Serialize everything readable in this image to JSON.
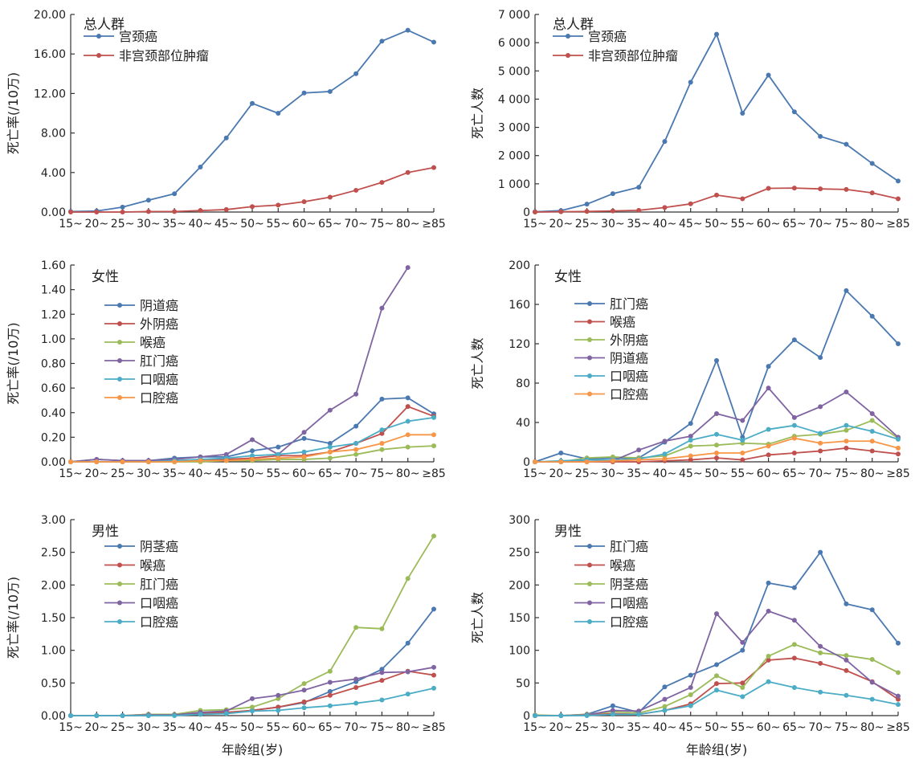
{
  "x_common_label": "年龄组(岁)",
  "chart_data": [
    {
      "type": "line",
      "title": "总人群",
      "ylabel": "死亡率(/10万)",
      "xlabel": "",
      "categories": [
        "15~",
        "20~",
        "25~",
        "30~",
        "35~",
        "40~",
        "45~",
        "50~",
        "55~",
        "60~",
        "65~",
        "70~",
        "75~",
        "80~",
        "≥85"
      ],
      "ylim": [
        0,
        20
      ],
      "yticks": [
        "0.00",
        "4.00",
        "8.00",
        "12.00",
        "16.00",
        "20.00"
      ],
      "yticks_values": [
        0,
        4,
        8,
        12,
        16,
        20
      ],
      "legend_position": "top-left",
      "grid": false,
      "series": [
        {
          "name": "宫颈癌",
          "color": "#4a78b0",
          "values": [
            0.05,
            0.1,
            0.5,
            1.2,
            1.85,
            4.55,
            7.5,
            11.0,
            10.0,
            12.05,
            12.2,
            14.0,
            17.3,
            18.4,
            17.2
          ]
        },
        {
          "name": "非宫颈部位肿瘤",
          "color": "#c0504d",
          "values": [
            0.0,
            0.0,
            0.0,
            0.05,
            0.05,
            0.15,
            0.25,
            0.55,
            0.7,
            1.05,
            1.5,
            2.2,
            3.0,
            4.0,
            4.5
          ]
        }
      ]
    },
    {
      "type": "line",
      "title": "总人群",
      "ylabel": "死亡人数",
      "xlabel": "",
      "categories": [
        "15~",
        "20~",
        "25~",
        "30~",
        "35~",
        "40~",
        "45~",
        "50~",
        "55~",
        "60~",
        "65~",
        "70~",
        "75~",
        "80~",
        "≥85"
      ],
      "ylim": [
        0,
        7000
      ],
      "yticks": [
        "0",
        "1 000",
        "2 000",
        "3 000",
        "4 000",
        "5 000",
        "6 000",
        "7 000"
      ],
      "yticks_values": [
        0,
        1000,
        2000,
        3000,
        4000,
        5000,
        6000,
        7000
      ],
      "legend_position": "top-left",
      "grid": false,
      "series": [
        {
          "name": "宫颈癌",
          "color": "#4a78b0",
          "values": [
            10,
            50,
            280,
            650,
            880,
            2500,
            4600,
            6300,
            3500,
            4850,
            3550,
            2680,
            2400,
            1720,
            1100
          ]
        },
        {
          "name": "非宫颈部位肿瘤",
          "color": "#c0504d",
          "values": [
            0,
            10,
            20,
            40,
            60,
            160,
            290,
            600,
            470,
            840,
            850,
            820,
            800,
            680,
            470
          ]
        }
      ]
    },
    {
      "type": "line",
      "title": "女性",
      "ylabel": "死亡率(/10万)",
      "xlabel": "",
      "categories": [
        "15~",
        "20~",
        "25~",
        "30~",
        "35~",
        "40~",
        "45~",
        "50~",
        "55~",
        "60~",
        "65~",
        "70~",
        "75~",
        "80~",
        "≥85"
      ],
      "ylim": [
        0,
        1.6
      ],
      "yticks": [
        "0.00",
        "0.20",
        "0.40",
        "0.60",
        "0.80",
        "1.00",
        "1.20",
        "1.40",
        "1.60"
      ],
      "yticks_values": [
        0,
        0.2,
        0.4,
        0.6,
        0.8,
        1.0,
        1.2,
        1.4,
        1.6
      ],
      "legend_position": "top-left",
      "grid": false,
      "series": [
        {
          "name": "阴道癌",
          "color": "#4a78b0",
          "values": [
            0.0,
            0.02,
            0.01,
            0.01,
            0.03,
            0.04,
            0.04,
            0.09,
            0.12,
            0.19,
            0.15,
            0.29,
            0.51,
            0.52,
            0.39
          ]
        },
        {
          "name": "外阴癌",
          "color": "#c0504d",
          "values": [
            0.0,
            0.0,
            0.0,
            0.0,
            0.0,
            0.01,
            0.02,
            0.03,
            0.05,
            0.05,
            0.08,
            0.15,
            0.23,
            0.45,
            0.37
          ]
        },
        {
          "name": "喉癌",
          "color": "#9bbb59",
          "values": [
            0.0,
            0.0,
            0.0,
            0.0,
            0.0,
            0.0,
            0.01,
            0.01,
            0.02,
            0.02,
            0.03,
            0.06,
            0.1,
            0.12,
            0.13
          ]
        },
        {
          "name": "肛门癌",
          "color": "#8064a2",
          "values": [
            0.0,
            0.02,
            0.01,
            0.01,
            0.02,
            0.04,
            0.06,
            0.18,
            0.06,
            0.24,
            0.42,
            0.55,
            1.25,
            1.58,
            null
          ]
        },
        {
          "name": "口咽癌",
          "color": "#4bacc6",
          "values": [
            0.0,
            0.0,
            0.0,
            0.0,
            0.01,
            0.02,
            0.03,
            0.05,
            0.06,
            0.08,
            0.12,
            0.15,
            0.26,
            0.33,
            0.36
          ]
        },
        {
          "name": "口腔癌",
          "color": "#f79646",
          "values": [
            0.0,
            0.0,
            0.0,
            0.0,
            0.0,
            0.01,
            0.01,
            0.02,
            0.03,
            0.04,
            0.08,
            0.1,
            0.15,
            0.22,
            0.22
          ]
        }
      ]
    },
    {
      "type": "line",
      "title": "女性",
      "ylabel": "死亡人数",
      "xlabel": "",
      "categories": [
        "15~",
        "20~",
        "25~",
        "30~",
        "35~",
        "40~",
        "45~",
        "50~",
        "55~",
        "60~",
        "65~",
        "70~",
        "75~",
        "80~",
        "≥85"
      ],
      "ylim": [
        0,
        200
      ],
      "yticks": [
        "0",
        "40",
        "80",
        "120",
        "160",
        "200"
      ],
      "yticks_values": [
        0,
        40,
        80,
        120,
        160,
        200
      ],
      "legend_position": "top-left",
      "grid": false,
      "series": [
        {
          "name": "肛门癌",
          "color": "#4a78b0",
          "values": [
            0,
            9,
            3,
            4,
            4,
            20,
            39,
            103,
            25,
            97,
            124,
            106,
            174,
            148,
            120
          ]
        },
        {
          "name": "喉癌",
          "color": "#c0504d",
          "values": [
            0,
            0,
            0,
            0,
            0,
            1,
            2,
            4,
            2,
            7,
            9,
            11,
            14,
            11,
            8
          ]
        },
        {
          "name": "外阴癌",
          "color": "#9bbb59",
          "values": [
            0,
            0,
            4,
            5,
            4,
            6,
            16,
            17,
            19,
            18,
            26,
            28,
            32,
            42,
            24
          ]
        },
        {
          "name": "阴道癌",
          "color": "#8064a2",
          "values": [
            0,
            0,
            2,
            1,
            12,
            21,
            26,
            49,
            42,
            75,
            45,
            56,
            71,
            49,
            25
          ]
        },
        {
          "name": "口咽癌",
          "color": "#4bacc6",
          "values": [
            0,
            1,
            2,
            2,
            3,
            8,
            22,
            28,
            22,
            33,
            37,
            29,
            37,
            31,
            23
          ]
        },
        {
          "name": "口腔癌",
          "color": "#f79646",
          "values": [
            0,
            0,
            0,
            1,
            2,
            3,
            6,
            9,
            9,
            16,
            24,
            19,
            21,
            21,
            14
          ]
        }
      ]
    },
    {
      "type": "line",
      "title": "男性",
      "ylabel": "死亡率(/10万)",
      "xlabel": "年龄组(岁)",
      "categories": [
        "15~",
        "20~",
        "25~",
        "30~",
        "35~",
        "40~",
        "45~",
        "50~",
        "55~",
        "60~",
        "65~",
        "70~",
        "75~",
        "80~",
        "≥85"
      ],
      "ylim": [
        0,
        3
      ],
      "yticks": [
        "0.00",
        "0.50",
        "1.00",
        "1.50",
        "2.00",
        "2.50",
        "3.00"
      ],
      "yticks_values": [
        0,
        0.5,
        1.0,
        1.5,
        2.0,
        2.5,
        3.0
      ],
      "legend_position": "top-left",
      "grid": false,
      "series": [
        {
          "name": "阴茎癌",
          "color": "#4a78b0",
          "values": [
            0.0,
            0.0,
            0.0,
            0.0,
            0.01,
            0.02,
            0.04,
            0.08,
            0.13,
            0.2,
            0.37,
            0.52,
            0.71,
            1.11,
            1.63
          ]
        },
        {
          "name": "喉癌",
          "color": "#c0504d",
          "values": [
            0.0,
            0.0,
            0.0,
            0.02,
            0.01,
            0.03,
            0.05,
            0.08,
            0.13,
            0.21,
            0.31,
            0.43,
            0.54,
            0.68,
            0.62
          ]
        },
        {
          "name": "肛门癌",
          "color": "#9bbb59",
          "values": [
            0.0,
            0.0,
            0.0,
            0.02,
            0.02,
            0.08,
            0.09,
            0.13,
            0.26,
            0.49,
            0.68,
            1.35,
            1.33,
            2.1,
            2.75
          ]
        },
        {
          "name": "口咽癌",
          "color": "#8064a2",
          "values": [
            0.0,
            0.0,
            0.0,
            0.01,
            0.01,
            0.05,
            0.07,
            0.26,
            0.31,
            0.39,
            0.51,
            0.56,
            0.66,
            0.67,
            0.74
          ]
        },
        {
          "name": "口腔癌",
          "color": "#4bacc6",
          "values": [
            0.0,
            0.0,
            0.0,
            0.0,
            0.0,
            0.02,
            0.03,
            0.07,
            0.08,
            0.12,
            0.15,
            0.19,
            0.24,
            0.33,
            0.42
          ]
        }
      ]
    },
    {
      "type": "line",
      "title": "男性",
      "ylabel": "死亡人数",
      "xlabel": "年龄组(岁)",
      "categories": [
        "15~",
        "20~",
        "25~",
        "30~",
        "35~",
        "40~",
        "45~",
        "50~",
        "55~",
        "60~",
        "65~",
        "70~",
        "75~",
        "80~",
        "≥85"
      ],
      "ylim": [
        0,
        300
      ],
      "yticks": [
        "0",
        "50",
        "100",
        "150",
        "200",
        "250",
        "300"
      ],
      "yticks_values": [
        0,
        50,
        100,
        150,
        200,
        250,
        300
      ],
      "legend_position": "top-left",
      "grid": false,
      "series": [
        {
          "name": "肛门癌",
          "color": "#4a78b0",
          "values": [
            0,
            0,
            2,
            15,
            5,
            44,
            62,
            78,
            100,
            203,
            196,
            250,
            171,
            162,
            111
          ]
        },
        {
          "name": "喉癌",
          "color": "#c0504d",
          "values": [
            0,
            0,
            1,
            3,
            2,
            8,
            18,
            49,
            50,
            85,
            88,
            80,
            69,
            52,
            25
          ]
        },
        {
          "name": "阴茎癌",
          "color": "#9bbb59",
          "values": [
            1,
            0,
            2,
            6,
            4,
            14,
            32,
            61,
            43,
            91,
            109,
            96,
            92,
            86,
            66
          ]
        },
        {
          "name": "口咽癌",
          "color": "#8064a2",
          "values": [
            0,
            0,
            1,
            8,
            7,
            25,
            43,
            156,
            112,
            160,
            146,
            106,
            85,
            51,
            30
          ]
        },
        {
          "name": "口腔癌",
          "color": "#4bacc6",
          "values": [
            0,
            0,
            0,
            2,
            2,
            8,
            15,
            39,
            29,
            52,
            43,
            36,
            31,
            25,
            17
          ]
        }
      ]
    }
  ]
}
